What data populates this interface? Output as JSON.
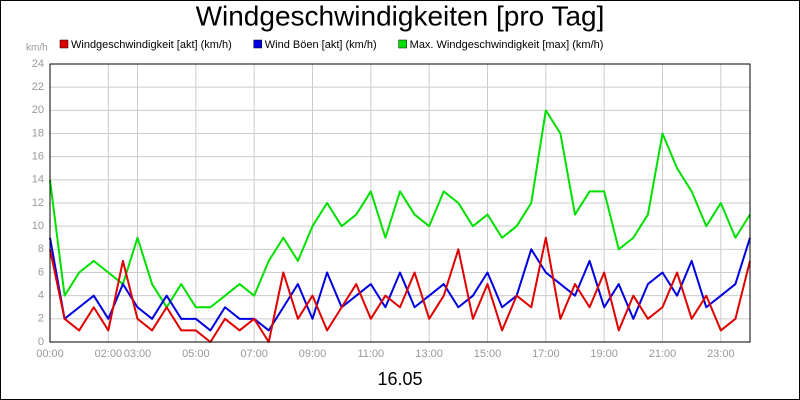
{
  "chart_data": {
    "type": "line",
    "title": "Windgeschwindigkeiten [pro Tag]",
    "y_unit": "km/h",
    "x_label": "16.05",
    "x": [
      0,
      0.5,
      1,
      1.5,
      2,
      2.5,
      3,
      3.5,
      4,
      4.5,
      5,
      5.5,
      6,
      6.5,
      7,
      7.5,
      8,
      8.5,
      9,
      9.5,
      10,
      10.5,
      11,
      11.5,
      12,
      12.5,
      13,
      13.5,
      14,
      14.5,
      15,
      15.5,
      16,
      16.5,
      17,
      17.5,
      18,
      18.5,
      19,
      19.5,
      20,
      20.5,
      21,
      21.5,
      22,
      22.5,
      23,
      23.5,
      24
    ],
    "series": [
      {
        "name": "Windgeschwindigkeit [akt] (km/h)",
        "color": "#e00000",
        "values": [
          8,
          2,
          1,
          3,
          1,
          7,
          2,
          1,
          3,
          1,
          1,
          0,
          2,
          1,
          2,
          0,
          6,
          2,
          4,
          1,
          3,
          5,
          2,
          4,
          3,
          6,
          2,
          4,
          8,
          2,
          5,
          1,
          4,
          3,
          9,
          2,
          5,
          3,
          6,
          1,
          4,
          2,
          3,
          6,
          2,
          4,
          1,
          2,
          7
        ]
      },
      {
        "name": "Wind Böen [akt] (km/h)",
        "color": "#0000e0",
        "values": [
          9,
          2,
          3,
          4,
          2,
          5,
          3,
          2,
          4,
          2,
          2,
          1,
          3,
          2,
          2,
          1,
          3,
          5,
          2,
          6,
          3,
          4,
          5,
          3,
          6,
          3,
          4,
          5,
          3,
          4,
          6,
          3,
          4,
          8,
          6,
          5,
          4,
          7,
          3,
          5,
          2,
          5,
          6,
          4,
          7,
          3,
          4,
          5,
          9
        ]
      },
      {
        "name": "Max. Windgeschwindigkeit [max] (km/h)",
        "color": "#00e000",
        "values": [
          14,
          4,
          6,
          7,
          6,
          5,
          9,
          5,
          3,
          5,
          3,
          3,
          4,
          5,
          4,
          7,
          9,
          7,
          10,
          12,
          10,
          11,
          13,
          9,
          13,
          11,
          10,
          13,
          12,
          10,
          11,
          9,
          10,
          12,
          20,
          18,
          11,
          13,
          13,
          8,
          9,
          11,
          18,
          15,
          13,
          10,
          12,
          9,
          11
        ]
      }
    ],
    "xlim": [
      0,
      24
    ],
    "ylim": [
      0,
      24
    ],
    "xticks": [
      {
        "value": 0,
        "label": "00:00"
      },
      {
        "value": 2,
        "label": "02:00"
      },
      {
        "value": 3,
        "label": "03:00"
      },
      {
        "value": 5,
        "label": "05:00"
      },
      {
        "value": 7,
        "label": "07:00"
      },
      {
        "value": 9,
        "label": "09:00"
      },
      {
        "value": 11,
        "label": "11:00"
      },
      {
        "value": 13,
        "label": "13:00"
      },
      {
        "value": 15,
        "label": "15:00"
      },
      {
        "value": 17,
        "label": "17:00"
      },
      {
        "value": 19,
        "label": "19:00"
      },
      {
        "value": 21,
        "label": "21:00"
      },
      {
        "value": 23,
        "label": "23:00"
      }
    ],
    "yticks": [
      0,
      2,
      4,
      6,
      8,
      10,
      12,
      14,
      16,
      18,
      20,
      22,
      24
    ],
    "grid": true
  }
}
